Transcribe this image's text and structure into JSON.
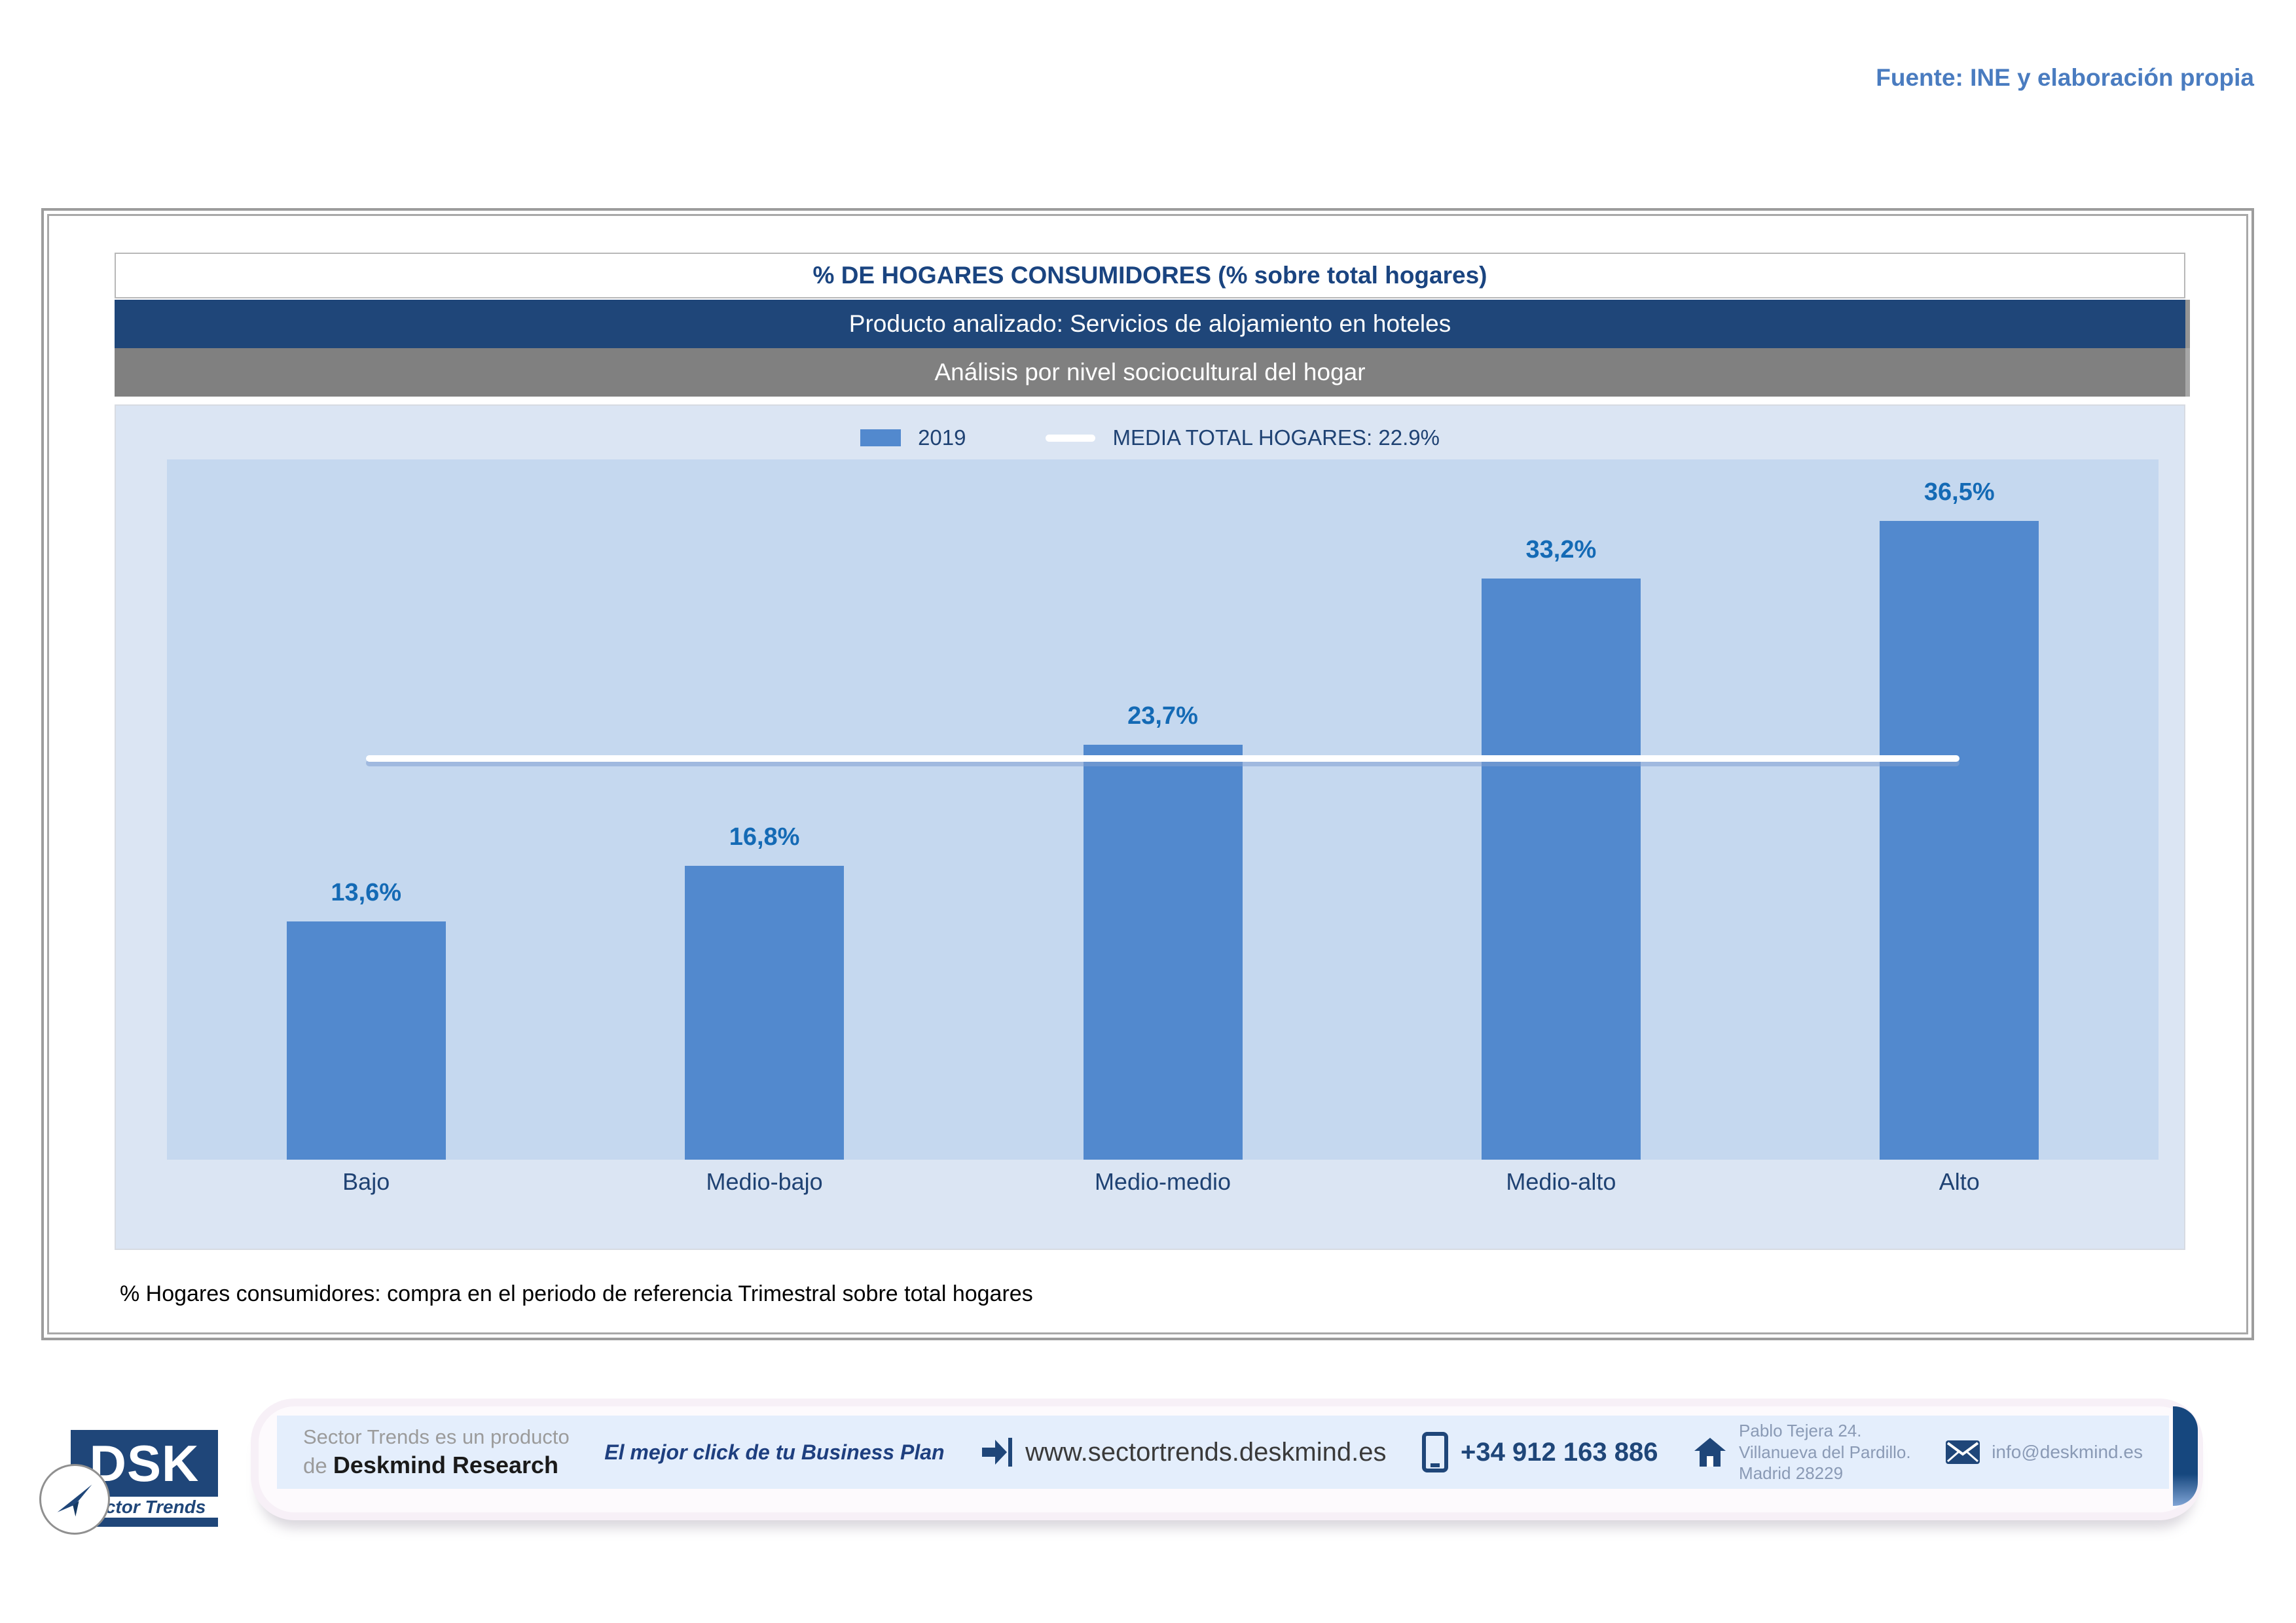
{
  "source_note": "Fuente: INE y elaboración propia",
  "header": {
    "title": "% DE HOGARES CONSUMIDORES (% sobre total hogares)",
    "subtitle_product": "Producto analizado: Servicios de alojamiento en hoteles",
    "subtitle_analysis": "Análisis por nivel sociocultural del hogar"
  },
  "chart_data": {
    "type": "bar",
    "title": "% DE HOGARES CONSUMIDORES (% sobre total hogares)",
    "categories": [
      "Bajo",
      "Medio-bajo",
      "Medio-medio",
      "Medio-alto",
      "Alto"
    ],
    "values": [
      13.6,
      16.8,
      23.7,
      33.2,
      36.5
    ],
    "value_labels": [
      "13,6%",
      "16,8%",
      "23,7%",
      "33,2%",
      "36,5%"
    ],
    "series_name": "2019",
    "media_value": 22.9,
    "media_label": "MEDIA TOTAL  HOGARES:  22.9%",
    "xlabel": "",
    "ylabel": "",
    "ylim": [
      0,
      40
    ],
    "grid": false,
    "legend_position": "top-center"
  },
  "footnote": "% Hogares consumidores: compra en el periodo de referencia Trimestral sobre total hogares",
  "footer": {
    "logo_abbr": "DSK",
    "logo_tagline": "Sector Trends",
    "product_line1": "Sector Trends es un producto",
    "product_line2_prefix": "de ",
    "product_line2_name": "Deskmind Research",
    "slogan": "El mejor click de tu Business Plan",
    "website": "www.sectortrends.deskmind.es",
    "phone": "+34 912 163 886",
    "address_line1": "Pablo Tejera 24.",
    "address_line2": "Villanueva del Pardillo.",
    "address_line3": "Madrid 28229",
    "email": "info@deskmind.es"
  },
  "colors": {
    "bar": "#5289ce",
    "navy": "#1f4679",
    "title_gray": "#808080",
    "value_label": "#146ab5",
    "chart_bg": "#dbe5f3",
    "plot_bg": "#c5d8ef",
    "media_line": "#ffffff",
    "source_note": "#4a7cc0"
  }
}
